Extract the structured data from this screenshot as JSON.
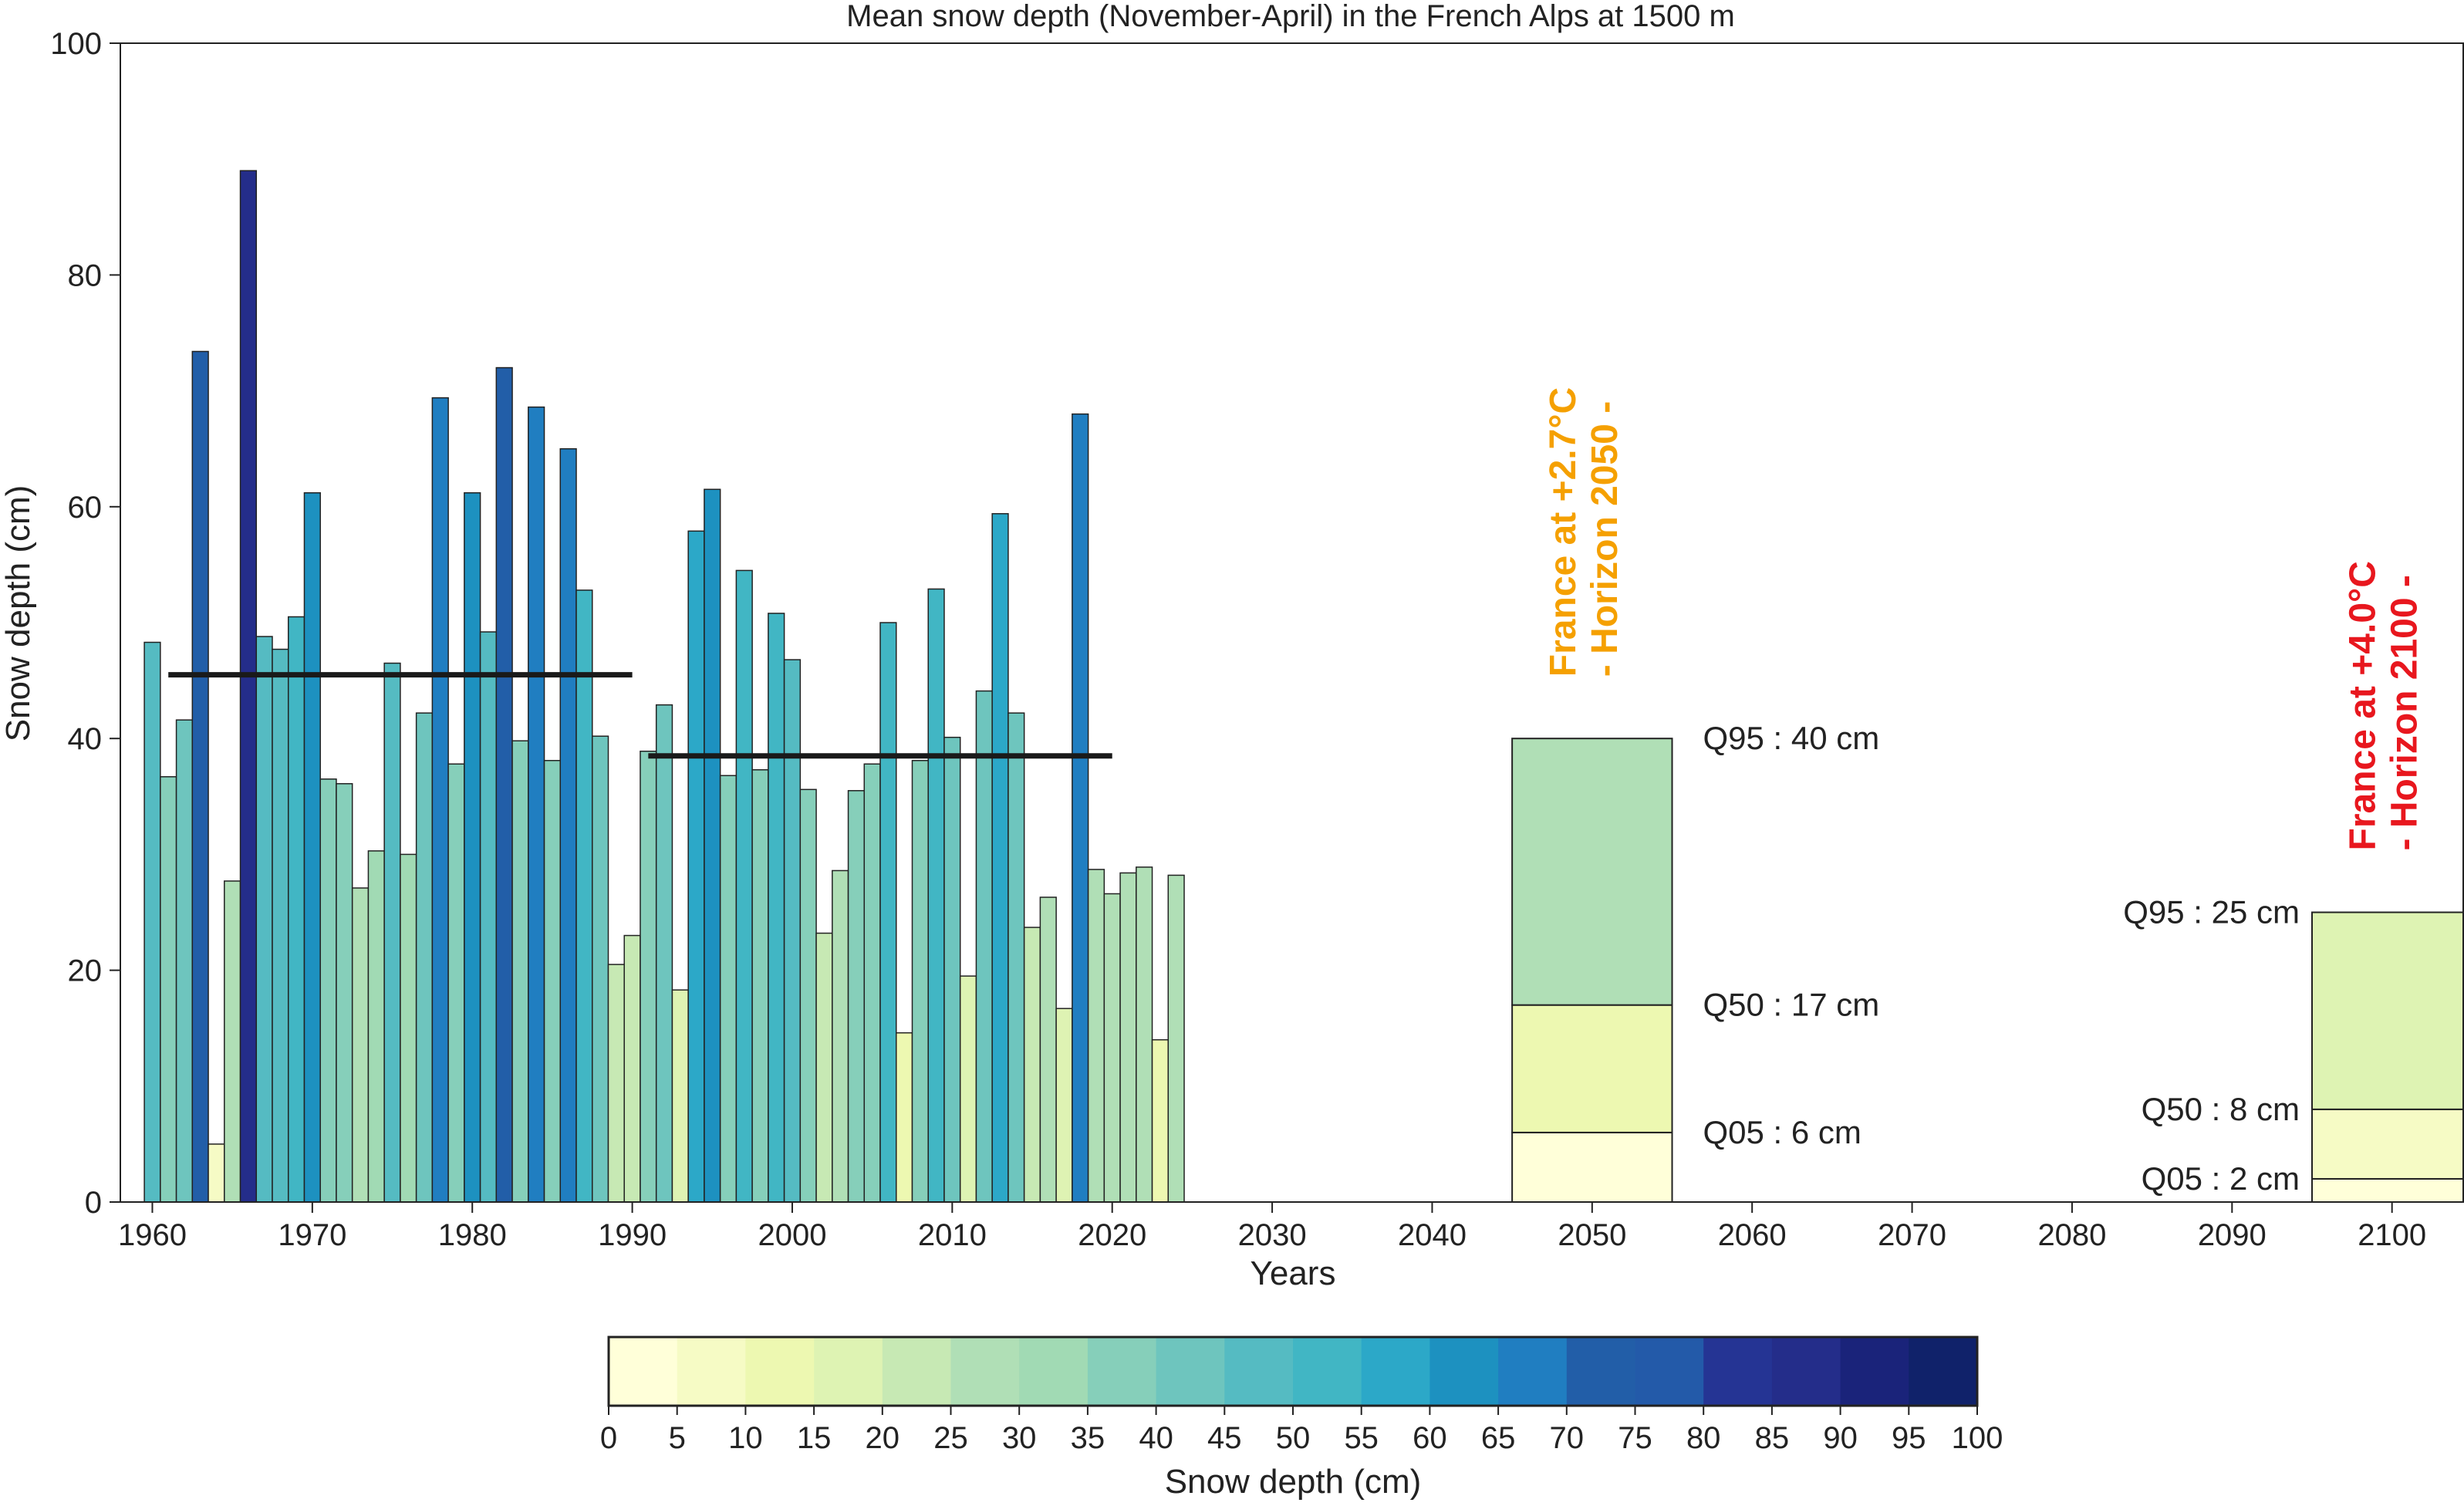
{
  "chart_data": {
    "type": "bar",
    "title": "Mean snow depth (November-April) in the French Alps at 1500 m",
    "xlabel": "Years",
    "ylabel": "Snow depth (cm)",
    "xlim": [
      1958,
      2104.5
    ],
    "ylim": [
      0,
      100
    ],
    "xticks": [
      1960,
      1970,
      1980,
      1990,
      2000,
      2010,
      2020,
      2030,
      2040,
      2050,
      2060,
      2070,
      2080,
      2090,
      2100
    ],
    "yticks": [
      0,
      20,
      40,
      60,
      80,
      100
    ],
    "grid": false,
    "x": [
      1960,
      1961,
      1962,
      1963,
      1964,
      1965,
      1966,
      1967,
      1968,
      1969,
      1970,
      1971,
      1972,
      1973,
      1974,
      1975,
      1976,
      1977,
      1978,
      1979,
      1980,
      1981,
      1982,
      1983,
      1984,
      1985,
      1986,
      1987,
      1988,
      1989,
      1990,
      1991,
      1992,
      1993,
      1994,
      1995,
      1996,
      1997,
      1998,
      1999,
      2000,
      2001,
      2002,
      2003,
      2004,
      2005,
      2006,
      2007,
      2008,
      2009,
      2010,
      2011,
      2012,
      2013,
      2014,
      2015,
      2016,
      2017,
      2018,
      2019,
      2020,
      2021,
      2022,
      2023,
      2024
    ],
    "values": [
      48.3,
      36.7,
      41.6,
      73.4,
      5.0,
      27.7,
      89.0,
      48.8,
      47.7,
      50.5,
      61.2,
      36.5,
      36.1,
      27.1,
      30.3,
      46.5,
      30.0,
      42.2,
      69.4,
      37.8,
      61.2,
      49.2,
      72.0,
      39.8,
      68.6,
      38.1,
      65.0,
      52.8,
      40.2,
      20.5,
      23.0,
      38.9,
      42.9,
      18.3,
      57.9,
      61.5,
      36.8,
      54.5,
      37.3,
      50.8,
      46.8,
      35.6,
      23.2,
      28.6,
      35.5,
      37.8,
      50.0,
      14.6,
      38.1,
      52.9,
      40.1,
      19.5,
      44.1,
      59.4,
      42.2,
      23.7,
      26.3,
      16.7,
      68.0,
      28.7,
      26.6,
      28.4,
      28.9,
      14.0,
      28.2
    ],
    "means": [
      {
        "x_start": 1961,
        "x_end": 1990,
        "value": 45.5
      },
      {
        "x_start": 1991,
        "x_end": 2020,
        "value": 38.5
      }
    ],
    "projections": [
      {
        "x_center": 2050,
        "width": 10,
        "q05": 6,
        "q50": 17,
        "q95": 40,
        "labels": {
          "q95": "Q95 : 40 cm",
          "q50": "Q50 : 17 cm",
          "q05": "Q05 : 6 cm"
        },
        "label_side": "right",
        "scenario_line1": "France at +2.7°C",
        "scenario_line2": "- Horizon 2050 -",
        "scenario_color": "#f5a000"
      },
      {
        "x_center": 2100,
        "width": 10,
        "q05": 2,
        "q50": 8,
        "q95": 25,
        "labels": {
          "q95": "Q95 : 25 cm",
          "q50": "Q50 : 8 cm",
          "q05": "Q05 : 2 cm"
        },
        "label_side": "left",
        "scenario_line1": "France at +4.0°C",
        "scenario_line2": "- Horizon 2100 -",
        "scenario_color": "#e8171e"
      }
    ],
    "colorbar": {
      "label": "Snow depth (cm)",
      "ticks": [
        0,
        5,
        10,
        15,
        20,
        25,
        30,
        35,
        40,
        45,
        50,
        55,
        60,
        65,
        70,
        75,
        80,
        85,
        90,
        95,
        100
      ],
      "colors": [
        "#ffffd9",
        "#f6fbc5",
        "#edf8b1",
        "#def3b3",
        "#c7e9b4",
        "#b0dfb6",
        "#a1dab4",
        "#86cfba",
        "#6ec5be",
        "#55bbc2",
        "#41b6c4",
        "#2ca8c8",
        "#1d91c0",
        "#207ec1",
        "#225ea8",
        "#235aa9",
        "#253494",
        "#242d8a",
        "#1a237a",
        "#10226a",
        "#081d58"
      ]
    }
  }
}
